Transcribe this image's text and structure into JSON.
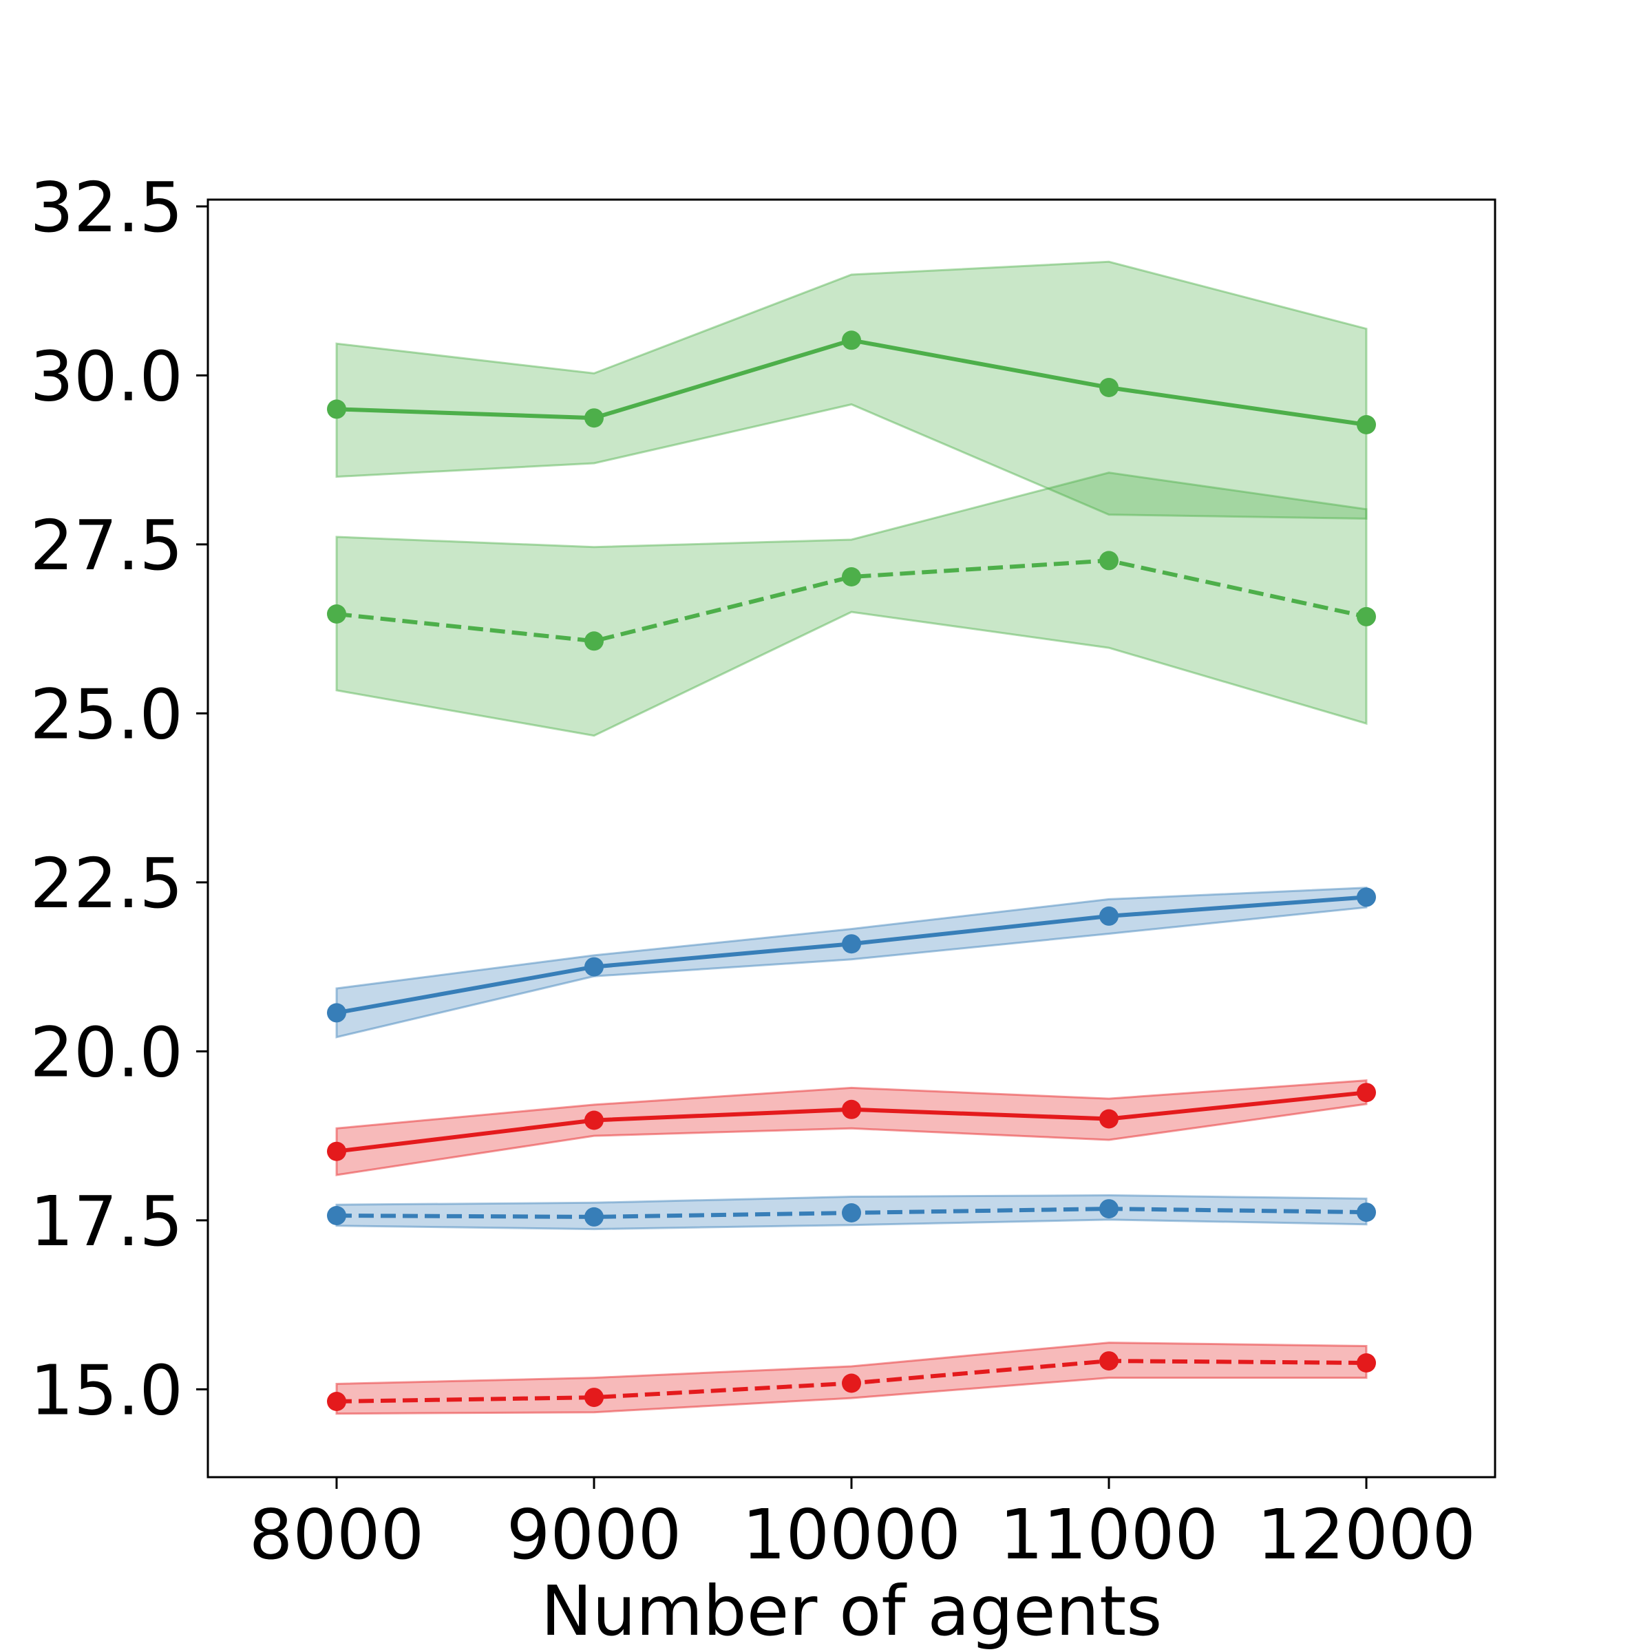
{
  "chart_data": {
    "type": "line",
    "xlabel": "Number of agents",
    "ylabel": "",
    "x": [
      8000,
      9000,
      10000,
      11000,
      12000
    ],
    "xlim": [
      7500,
      12500
    ],
    "ylim": [
      13.7,
      32.6
    ],
    "xticks": [
      8000,
      9000,
      10000,
      11000,
      12000
    ],
    "xtick_labels": [
      "8000",
      "9000",
      "10000",
      "11000",
      "12000"
    ],
    "yticks": [
      15.0,
      17.5,
      20.0,
      22.5,
      25.0,
      27.5,
      30.0,
      32.5
    ],
    "ytick_labels": [
      "15.0",
      "17.5",
      "20.0",
      "22.5",
      "25.0",
      "27.5",
      "30.0",
      "32.5"
    ],
    "grid": false,
    "series": [
      {
        "color": "#4daf4a",
        "style": "solid",
        "values": [
          29.5,
          29.37,
          30.52,
          29.82,
          29.27
        ],
        "lower": [
          28.5,
          28.7,
          29.57,
          27.94,
          27.88
        ],
        "upper": [
          30.47,
          30.03,
          31.49,
          31.68,
          30.69
        ]
      },
      {
        "color": "#4daf4a",
        "style": "dashed",
        "values": [
          26.47,
          26.07,
          27.02,
          27.26,
          26.43
        ],
        "lower": [
          25.34,
          24.67,
          26.5,
          25.97,
          24.85
        ],
        "upper": [
          27.61,
          27.46,
          27.57,
          28.56,
          28.02
        ]
      },
      {
        "color": "#377eb8",
        "style": "solid",
        "values": [
          20.57,
          21.25,
          21.59,
          22.0,
          22.28
        ],
        "lower": [
          20.21,
          21.11,
          21.36,
          21.74,
          22.13
        ],
        "upper": [
          20.93,
          21.42,
          21.81,
          22.25,
          22.42
        ]
      },
      {
        "color": "#e41a1c",
        "style": "solid",
        "values": [
          18.52,
          18.98,
          19.14,
          19.0,
          19.39
        ],
        "lower": [
          18.17,
          18.75,
          18.86,
          18.69,
          19.22
        ],
        "upper": [
          18.86,
          19.21,
          19.46,
          19.3,
          19.57
        ]
      },
      {
        "color": "#377eb8",
        "style": "dashed",
        "values": [
          17.57,
          17.55,
          17.61,
          17.67,
          17.62
        ],
        "lower": [
          17.42,
          17.37,
          17.43,
          17.51,
          17.44
        ],
        "upper": [
          17.73,
          17.76,
          17.85,
          17.87,
          17.82
        ]
      },
      {
        "color": "#e41a1c",
        "style": "dashed",
        "values": [
          14.82,
          14.88,
          15.09,
          15.42,
          15.39
        ],
        "lower": [
          14.64,
          14.66,
          14.87,
          15.17,
          15.17
        ],
        "upper": [
          15.08,
          15.17,
          15.34,
          15.69,
          15.64
        ]
      }
    ]
  }
}
